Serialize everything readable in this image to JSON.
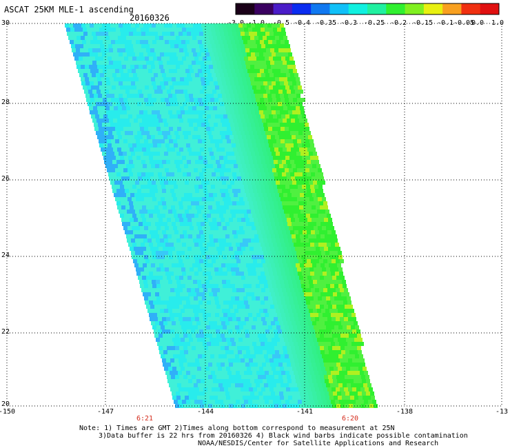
{
  "header": {
    "title": "ASCAT 25KM MLE-1 ascending",
    "date": "20160326"
  },
  "colorbar": {
    "labels": [
      "-3.0",
      "-1.0",
      "-0.5",
      "-0.4",
      "-0.35",
      "-0.3",
      "-0.25",
      "-0.2",
      "-0.15",
      "-0.1",
      "-0.05",
      "0.0",
      "1.0"
    ],
    "colors": [
      "#1a0018",
      "#3a0060",
      "#4a1cc8",
      "#0a2cf0",
      "#1078f0",
      "#10c0f8",
      "#10f0e0",
      "#20f0a0",
      "#30f030",
      "#80f020",
      "#e8f010",
      "#f8a020",
      "#f03010",
      "#e01010"
    ]
  },
  "axes": {
    "lat_labels": [
      "30",
      "28",
      "26",
      "24",
      "22",
      "20"
    ],
    "lon_labels": [
      "-150",
      "-147",
      "-144",
      "-141",
      "-138",
      "-13"
    ],
    "time_labels": [
      "6:21",
      "6:20"
    ]
  },
  "notes": {
    "line1": "Note: 1) Times are GMT 2)Times along bottom correspond to measurement at 25N",
    "line2": "3)Data buffer is 22 hrs from 20160326 4) Black wind barbs indicate possible contamination",
    "line3": "NOAA/NESDIS/Center for Satellite Applications and Research"
  }
}
